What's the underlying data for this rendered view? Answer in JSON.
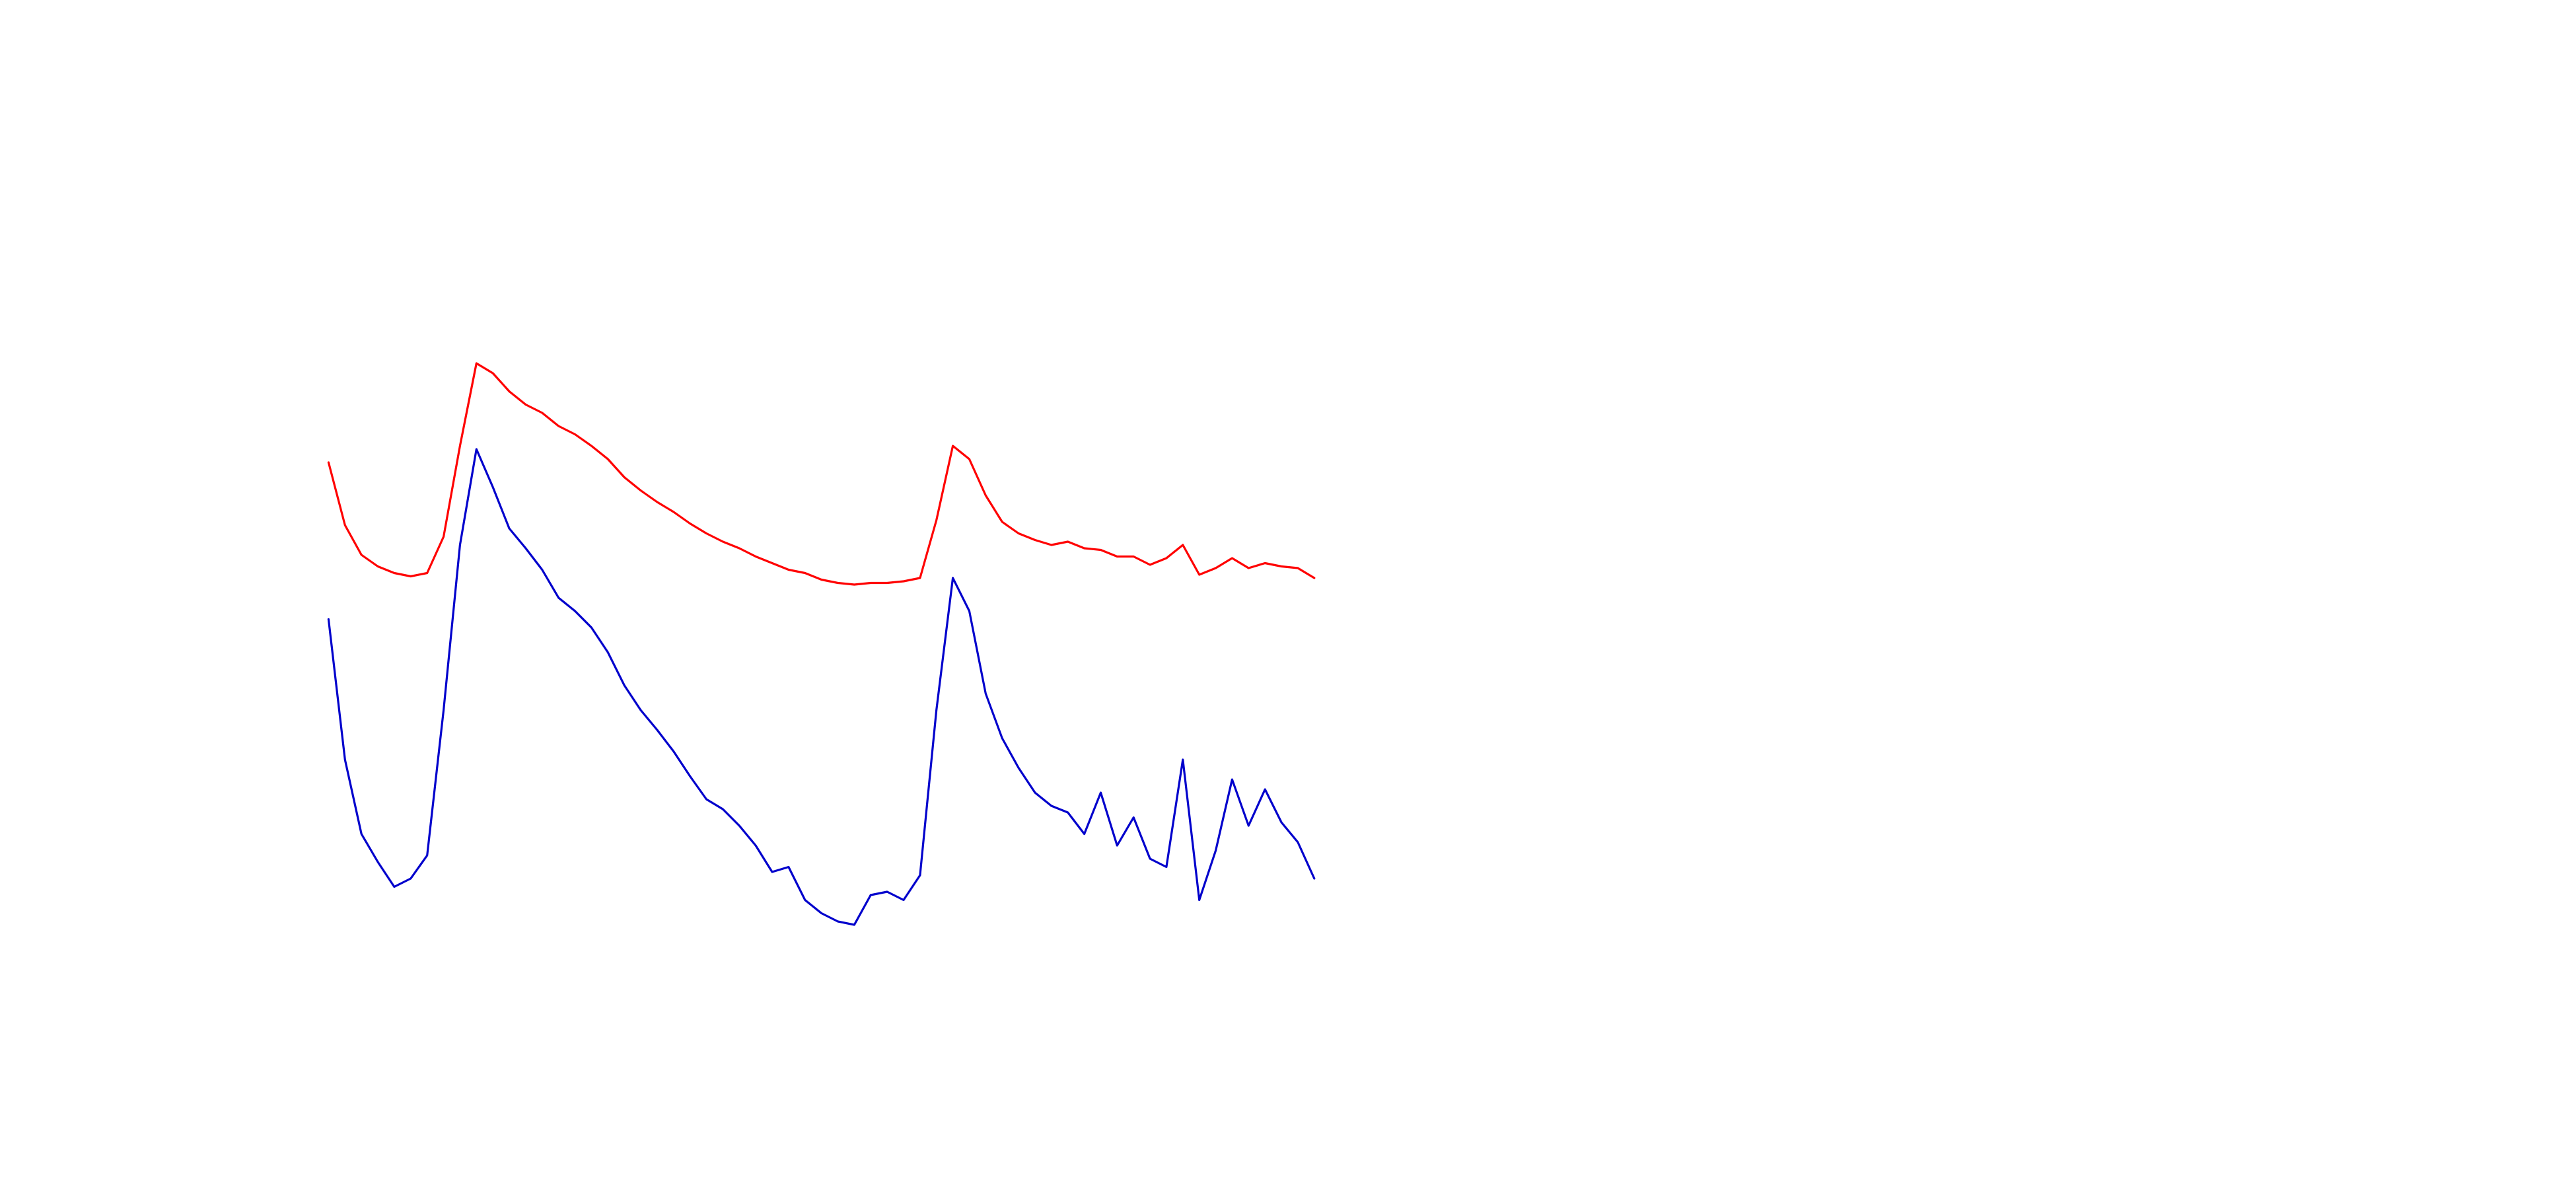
{
  "chart_data": {
    "type": "line",
    "x": [
      200,
      210,
      220,
      230,
      240,
      250,
      260,
      270,
      280,
      290,
      300,
      310,
      320,
      330,
      340,
      350,
      360,
      370,
      380,
      390,
      400,
      410,
      420,
      430,
      440,
      450,
      460,
      470,
      480,
      490,
      500,
      510,
      520,
      530,
      540,
      550,
      560,
      570,
      580,
      590,
      600,
      610,
      620,
      630,
      640,
      650,
      660,
      670,
      680,
      690,
      700,
      710,
      720,
      730,
      740,
      750,
      760,
      770,
      780,
      790,
      800
    ],
    "xlim": [
      0,
      1568
    ],
    "ylim": [
      720,
      0
    ],
    "series": [
      {
        "name": "red",
        "color": "#ff0000",
        "values": [
          280,
          318,
          336,
          343,
          347,
          349,
          347,
          325,
          270,
          220,
          226,
          237,
          245,
          250,
          258,
          263,
          270,
          278,
          289,
          297,
          304,
          310,
          317,
          323,
          328,
          332,
          337,
          341,
          345,
          347,
          351,
          353,
          354,
          353,
          353,
          352,
          350,
          315,
          270,
          278,
          300,
          316,
          323,
          327,
          330,
          328,
          332,
          333,
          337,
          337,
          342,
          338,
          330,
          348,
          344,
          338,
          344,
          341,
          343,
          344,
          350
        ]
      },
      {
        "name": "blue",
        "color": "#0000cc",
        "values": [
          375,
          460,
          505,
          522,
          537,
          532,
          518,
          430,
          330,
          272,
          295,
          320,
          332,
          345,
          362,
          370,
          380,
          395,
          415,
          430,
          442,
          455,
          470,
          484,
          490,
          500,
          512,
          528,
          525,
          545,
          553,
          558,
          560,
          542,
          540,
          545,
          530,
          430,
          350,
          370,
          420,
          447,
          465,
          480,
          488,
          492,
          505,
          480,
          512,
          495,
          520,
          525,
          460,
          545,
          515,
          472,
          500,
          478,
          498,
          510,
          532
        ]
      }
    ]
  }
}
